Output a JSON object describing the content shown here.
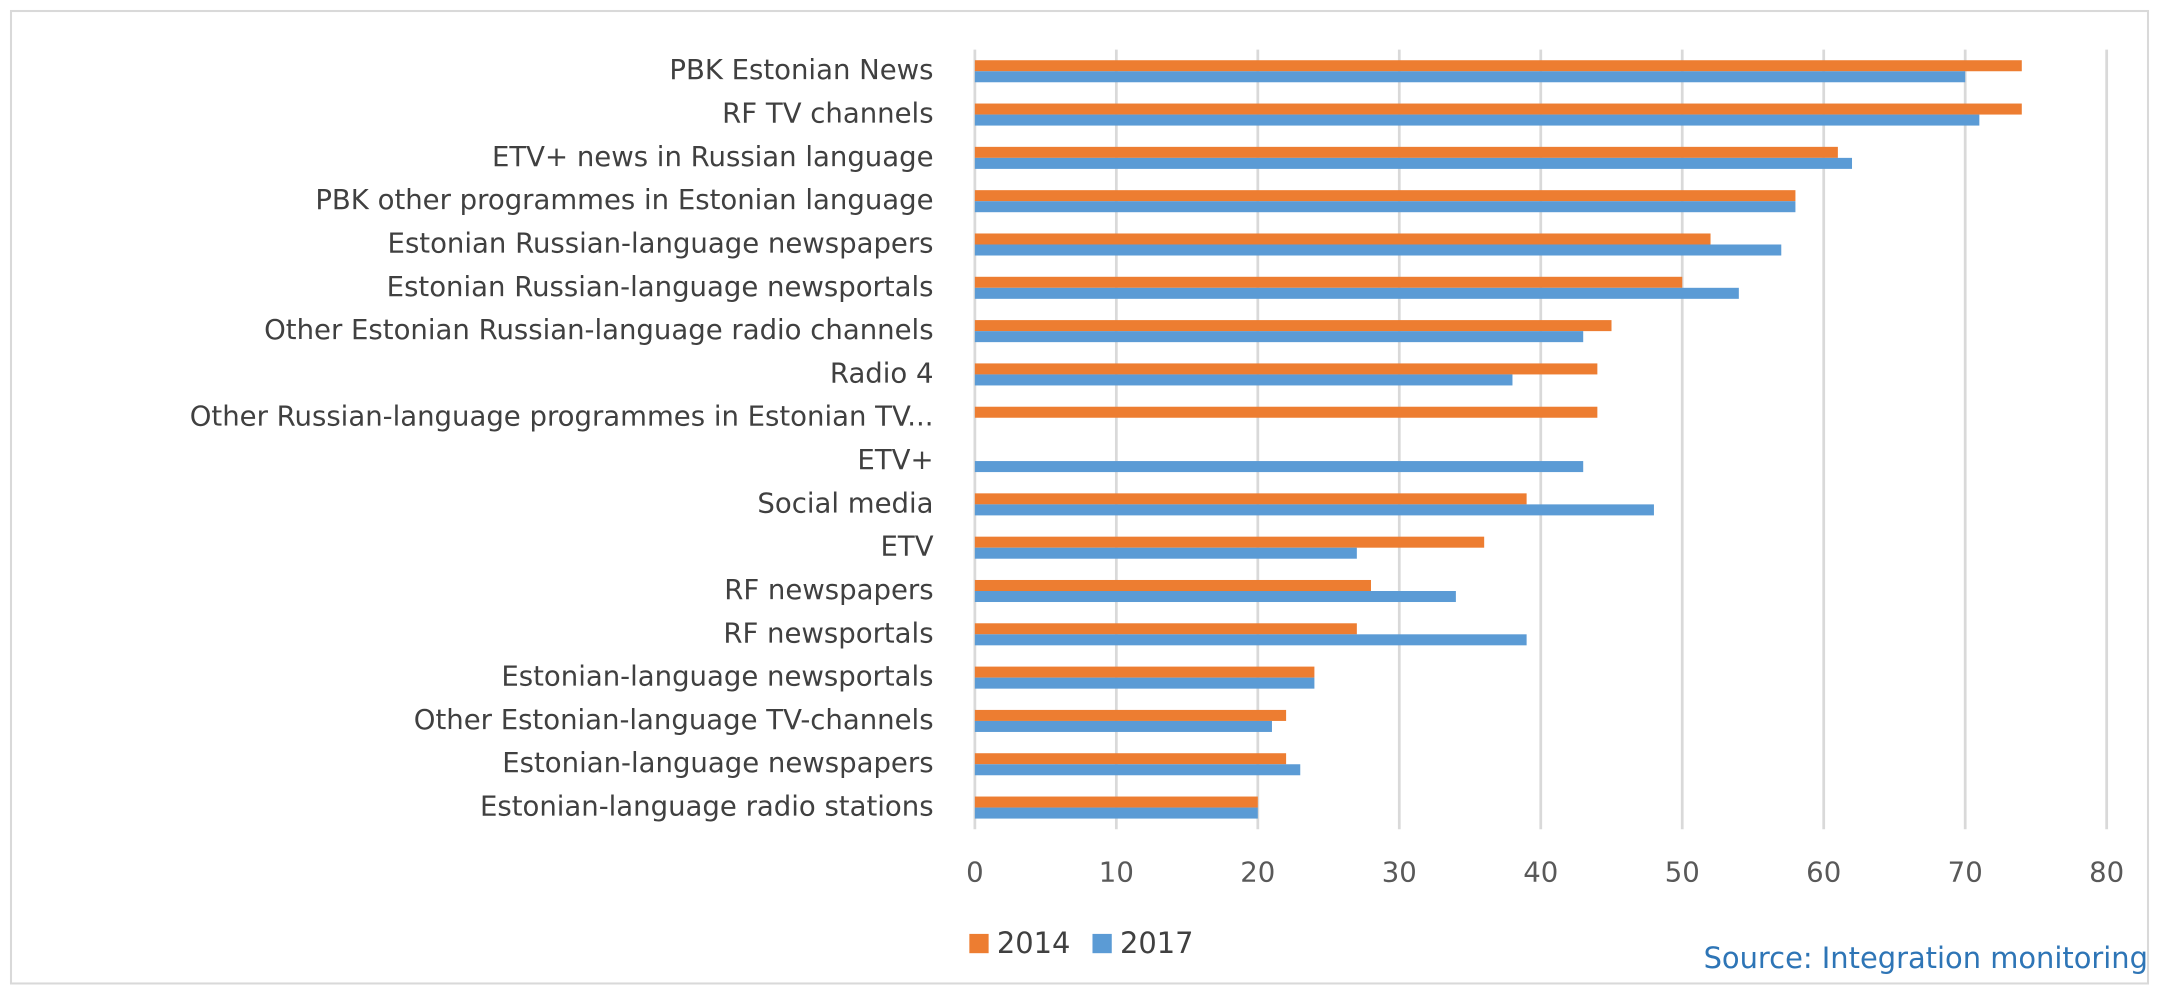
{
  "chart_data": {
    "type": "bar",
    "orientation": "horizontal",
    "categories": [
      "PBK Estonian News",
      "RF TV channels",
      "ETV+ news in Russian language",
      "PBK other programmes in Estonian language",
      "Estonian Russian-language newspapers",
      "Estonian Russian-language newsportals",
      "Other Estonian Russian-language radio channels",
      "Radio 4",
      "Other Russian-language programmes in Estonian TV...",
      "ETV+",
      "Social media",
      "ETV",
      "RF newspapers",
      "RF newsportals",
      "Estonian-language newsportals",
      "Other Estonian-language TV-channels",
      "Estonian-language newspapers",
      "Estonian-language radio stations"
    ],
    "series": [
      {
        "name": "2014",
        "color": "#ed7d31",
        "values": [
          74,
          74,
          61,
          58,
          52,
          50,
          45,
          44,
          44,
          null,
          39,
          36,
          28,
          27,
          24,
          22,
          22,
          20
        ]
      },
      {
        "name": "2017",
        "color": "#5b9bd5",
        "values": [
          70,
          71,
          62,
          58,
          57,
          54,
          43,
          38,
          null,
          43,
          48,
          27,
          34,
          39,
          24,
          21,
          23,
          20
        ]
      }
    ],
    "xlim": [
      0,
      80
    ],
    "xticks": [
      0,
      10,
      20,
      30,
      40,
      50,
      60,
      70,
      80
    ],
    "grid": true,
    "legend": "bottom",
    "source": "Source: Integration monitoring"
  }
}
